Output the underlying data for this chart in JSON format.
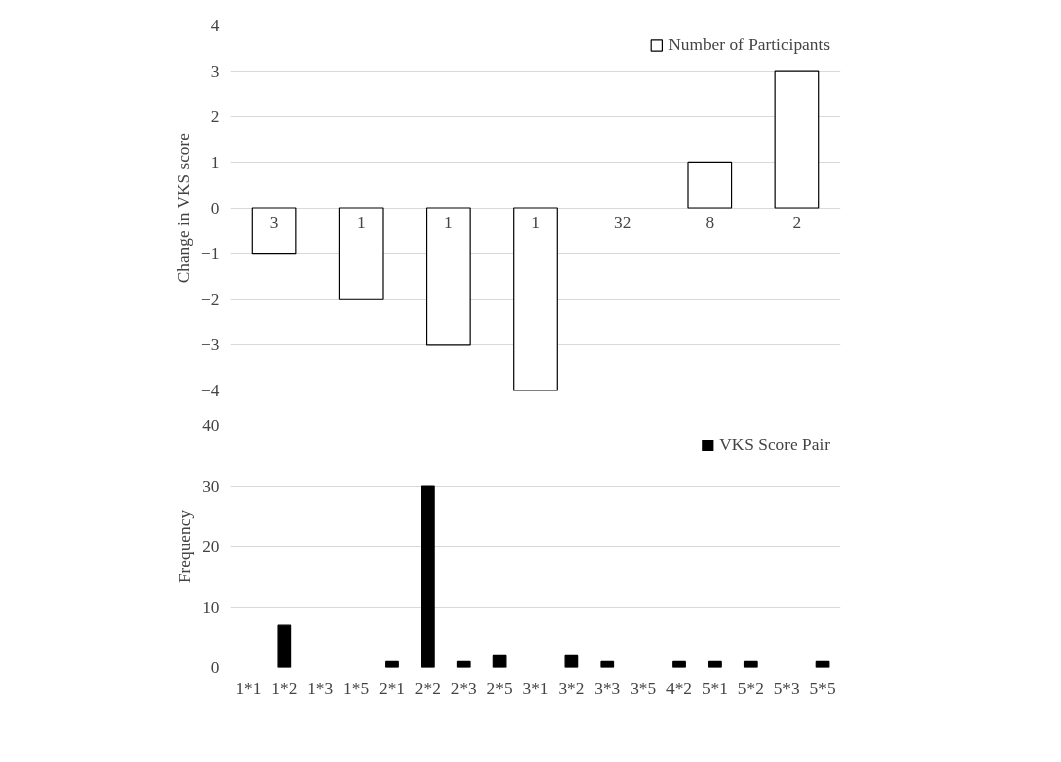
{
  "chart_data": [
    {
      "type": "bar",
      "ylabel": "Change in VKS score",
      "categories": [
        null,
        null,
        null,
        null,
        null,
        null,
        null
      ],
      "series": [
        {
          "name": "Number of Participants",
          "color": "#ffffff",
          "values": [
            -1,
            -2,
            -3,
            -4,
            0,
            1,
            3
          ]
        }
      ],
      "annotations": [
        "3",
        "1",
        "1",
        "1",
        "32",
        "8",
        "2"
      ],
      "ylim": [
        -4,
        4
      ],
      "yticks": [
        -4,
        -3,
        -2,
        -1,
        0,
        1,
        2,
        3,
        4
      ],
      "grid": "y",
      "legend": "top right",
      "tick_labels": "y"
    },
    {
      "type": "bar",
      "ylabel": "Frequency",
      "categories": [
        "1*1",
        "1*2",
        "1*3",
        "1*5",
        "2*1",
        "2*2",
        "2*3",
        "2*5",
        "3*1",
        "3*2",
        "3*3",
        "3*5",
        "4*2",
        "5*1",
        "5*2",
        "5*3",
        "5*5"
      ],
      "series": [
        {
          "name": "VKS Score Pair",
          "color": "#000000",
          "values": [
            0,
            7,
            0,
            0,
            1,
            30,
            1,
            2,
            0,
            2,
            1,
            0,
            1,
            1,
            1,
            0,
            1
          ]
        }
      ],
      "ylim": [
        0,
        40
      ],
      "yticks": [
        0,
        10,
        20,
        30,
        40
      ],
      "grid": "y",
      "legend": "top right"
    }
  ]
}
